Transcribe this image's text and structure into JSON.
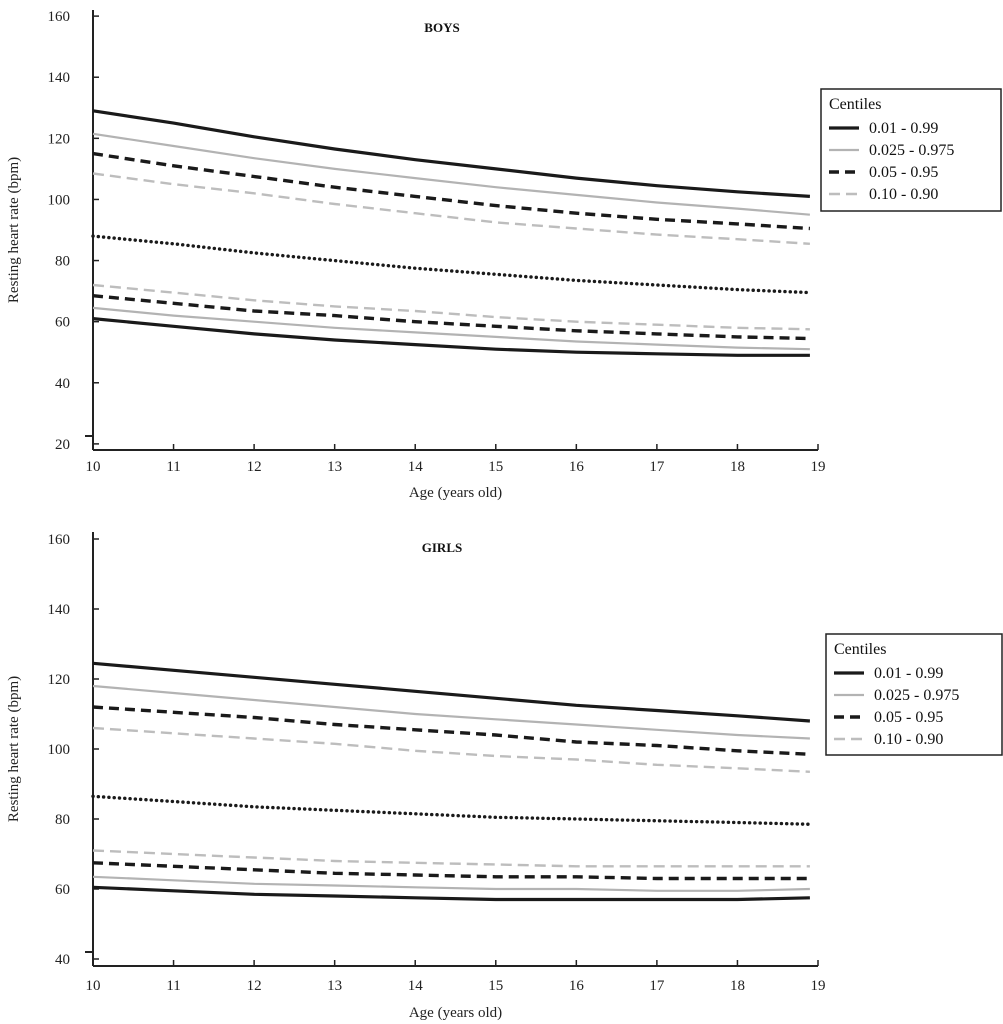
{
  "chart_data": [
    {
      "type": "line",
      "title": "BOYS",
      "xlabel": "Age (years old)",
      "ylabel": "Resting heart rate (bpm)",
      "xlim": [
        10,
        19
      ],
      "ylim": [
        18,
        162
      ],
      "xticks": [
        10,
        11,
        12,
        13,
        14,
        15,
        16,
        17,
        18,
        19
      ],
      "yticks": [
        20,
        40,
        60,
        80,
        100,
        120,
        140,
        160
      ],
      "legend_title": "Centiles",
      "legend_position": "right",
      "x": [
        10,
        11,
        12,
        13,
        14,
        15,
        16,
        17,
        18,
        18.9
      ],
      "series": [
        {
          "name": "0.01 - 0.99",
          "style": "solid-dark",
          "values": [
            129,
            125,
            120.5,
            116.5,
            113,
            110,
            107,
            104.5,
            102.5,
            101
          ]
        },
        {
          "name": "0.025 - 0.975",
          "style": "solid-light",
          "values": [
            121.5,
            117.5,
            113.5,
            110,
            107,
            104,
            101.5,
            99,
            97,
            95
          ]
        },
        {
          "name": "0.05 - 0.95",
          "style": "dashed-dark",
          "values": [
            115,
            111,
            107.5,
            104,
            101,
            98,
            95.5,
            93.5,
            92,
            90.5
          ]
        },
        {
          "name": "0.10 - 0.90",
          "style": "dashed-light",
          "values": [
            108.5,
            105,
            102,
            98.5,
            95.5,
            92.5,
            90.5,
            88.5,
            87,
            85.5
          ]
        },
        {
          "style": "dotted-dark",
          "values": [
            88,
            85.5,
            82.5,
            80,
            77.5,
            75.5,
            73.5,
            72,
            70.5,
            69.5
          ]
        },
        {
          "style": "dashed-light",
          "values": [
            72,
            69.5,
            67,
            65,
            63.5,
            61.5,
            60,
            59,
            58,
            57.5
          ]
        },
        {
          "style": "dashed-dark",
          "values": [
            68.5,
            66,
            63.5,
            62,
            60,
            58.5,
            57,
            56,
            55,
            54.5
          ]
        },
        {
          "style": "solid-light",
          "values": [
            64.5,
            62,
            60,
            58,
            56.5,
            55,
            53.5,
            52.5,
            51.5,
            51
          ]
        },
        {
          "style": "solid-dark",
          "values": [
            61,
            58.5,
            56,
            54,
            52.5,
            51,
            50,
            49.5,
            49,
            49
          ]
        }
      ]
    },
    {
      "type": "line",
      "title": "GIRLS",
      "xlabel": "Age (years old)",
      "ylabel": "Resting heart rate (bpm)",
      "xlim": [
        10,
        19
      ],
      "ylim": [
        38,
        162
      ],
      "xticks": [
        10,
        11,
        12,
        13,
        14,
        15,
        16,
        17,
        18,
        19
      ],
      "yticks": [
        40,
        60,
        80,
        100,
        120,
        140,
        160
      ],
      "legend_title": "Centiles",
      "legend_position": "right",
      "x": [
        10,
        11,
        12,
        13,
        14,
        15,
        16,
        17,
        18,
        18.9
      ],
      "series": [
        {
          "name": "0.01 - 0.99",
          "style": "solid-dark",
          "values": [
            124.5,
            122.5,
            120.5,
            118.5,
            116.5,
            114.5,
            112.5,
            111,
            109.5,
            108
          ]
        },
        {
          "name": "0.025 - 0.975",
          "style": "solid-light",
          "values": [
            118,
            116,
            114,
            112,
            110,
            108.5,
            107,
            105.5,
            104,
            103
          ]
        },
        {
          "name": "0.05 - 0.95",
          "style": "dashed-dark",
          "values": [
            112,
            110.5,
            109,
            107,
            105.5,
            104,
            102,
            101,
            99.5,
            98.5
          ]
        },
        {
          "name": "0.10 - 0.90",
          "style": "dashed-light",
          "values": [
            106,
            104.5,
            103,
            101.5,
            99.5,
            98,
            97,
            95.5,
            94.5,
            93.5
          ]
        },
        {
          "style": "dotted-dark",
          "values": [
            86.5,
            85,
            83.5,
            82.5,
            81.5,
            80.5,
            80,
            79.5,
            79,
            78.5
          ]
        },
        {
          "style": "dashed-light",
          "values": [
            71,
            70,
            69,
            68,
            67.5,
            67,
            66.5,
            66.5,
            66.5,
            66.5
          ]
        },
        {
          "style": "dashed-dark",
          "values": [
            67.5,
            66.5,
            65.5,
            64.5,
            64,
            63.5,
            63.5,
            63,
            63,
            63
          ]
        },
        {
          "style": "solid-light",
          "values": [
            63.5,
            62.5,
            61.5,
            61,
            60.5,
            60,
            60,
            59.5,
            59.5,
            60
          ]
        },
        {
          "style": "solid-dark",
          "values": [
            60.5,
            59.5,
            58.5,
            58,
            57.5,
            57,
            57,
            57,
            57,
            57.5
          ]
        }
      ]
    }
  ]
}
